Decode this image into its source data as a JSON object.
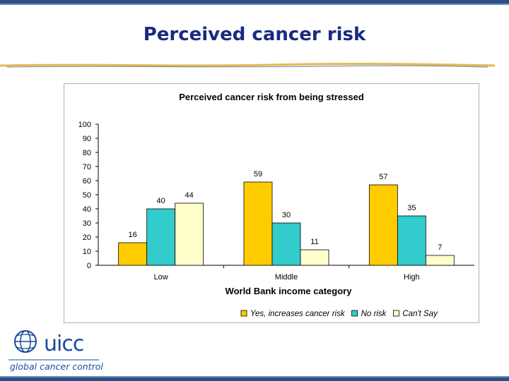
{
  "slide": {
    "title": "Perceived cancer risk",
    "accent": "#1a2a80",
    "stripe": "#2a4f86",
    "gold": "#e6b84a"
  },
  "logo": {
    "name": "uicc",
    "tagline": "global cancer control",
    "color": "#1a4a9c"
  },
  "chart_data": {
    "type": "bar",
    "title": "Perceived cancer risk from being stressed",
    "xlabel": "World Bank income category",
    "ylabel": "",
    "ylim": [
      0,
      100
    ],
    "yticks": [
      0,
      10,
      20,
      30,
      40,
      50,
      60,
      70,
      80,
      90,
      100
    ],
    "categories": [
      "Low",
      "Middle",
      "High"
    ],
    "series": [
      {
        "name": "Yes, increases cancer risk",
        "values": [
          16,
          59,
          57
        ],
        "color": "#ffcc00"
      },
      {
        "name": "No risk",
        "values": [
          40,
          30,
          35
        ],
        "color": "#33cccc"
      },
      {
        "name": "Can't Say",
        "values": [
          44,
          11,
          7
        ],
        "color": "#ffffcc"
      }
    ],
    "legend_position": "bottom",
    "grid": false
  }
}
